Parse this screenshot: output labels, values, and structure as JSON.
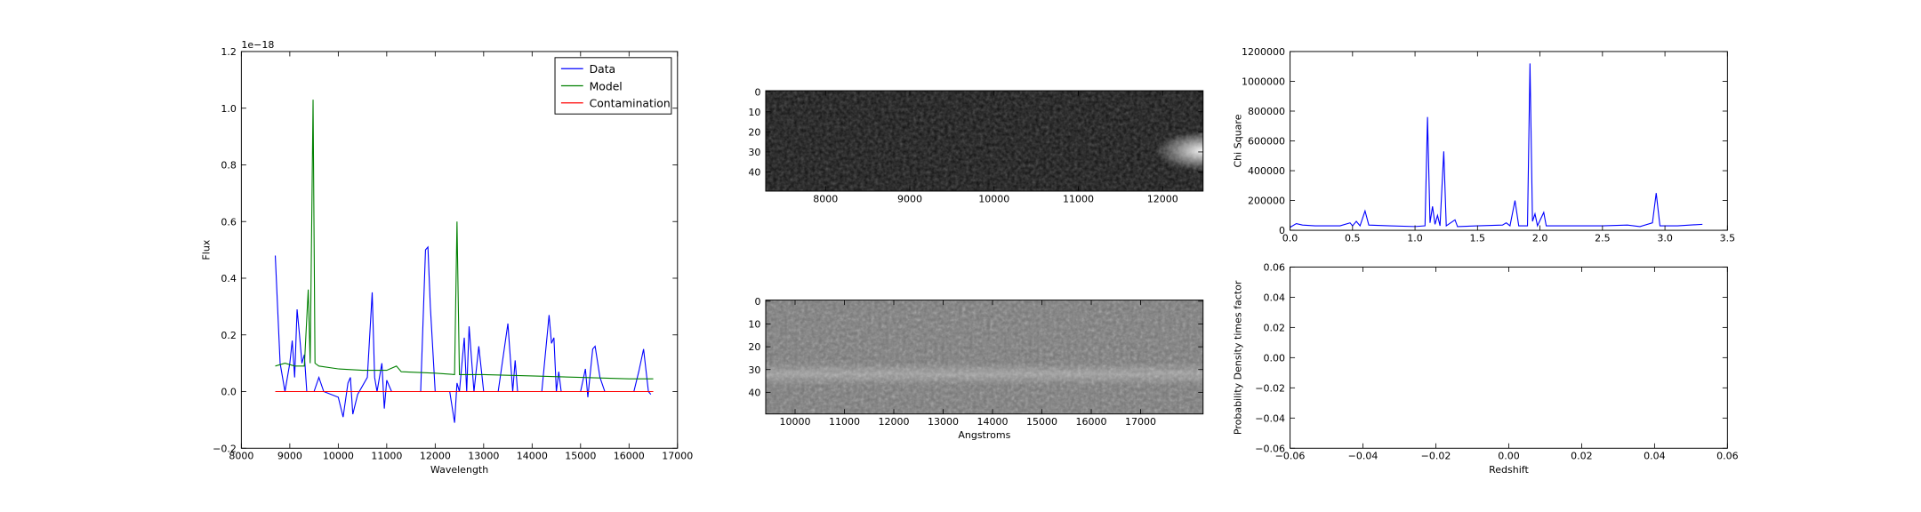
{
  "chart_data": [
    {
      "type": "line",
      "xlabel": "Wavelength",
      "ylabel": "Flux",
      "y_offset_label": "1e−18",
      "xlim": [
        8000,
        17000
      ],
      "ylim": [
        -0.2,
        1.2
      ],
      "xticks": [
        8000,
        9000,
        10000,
        11000,
        12000,
        13000,
        14000,
        15000,
        16000,
        17000
      ],
      "yticks": [
        {
          "value": -0.2,
          "label": "−0.2"
        },
        {
          "value": 0,
          "label": "0.0"
        },
        0.2,
        0.4,
        0.6,
        0.8,
        {
          "value": 1,
          "label": "1.0"
        },
        1.2
      ],
      "legend": "upper right",
      "series": [
        {
          "name": "Data",
          "color": "#0000ff",
          "x": [
            8700,
            8800,
            8900,
            9000,
            9050,
            9100,
            9150,
            9200,
            9250,
            9300,
            9350,
            9500,
            9600,
            9700,
            10000,
            10100,
            10200,
            10250,
            10300,
            10400,
            10600,
            10700,
            10750,
            10800,
            10900,
            10950,
            11000,
            11100,
            11700,
            11800,
            11850,
            11900,
            12000,
            12300,
            12400,
            12450,
            12500,
            12600,
            12650,
            12700,
            12800,
            12900,
            13000,
            13300,
            13500,
            13600,
            13650,
            13700,
            14200,
            14350,
            14400,
            14450,
            14500,
            14550,
            14600,
            15000,
            15100,
            15150,
            15250,
            15300,
            15400,
            15500,
            16100,
            16200,
            16300,
            16400,
            16450
          ],
          "values": [
            0.48,
            0.1,
            0.0,
            0.1,
            0.18,
            0.05,
            0.29,
            0.2,
            0.1,
            0.13,
            0.0,
            0.0,
            0.05,
            0.0,
            -0.02,
            -0.09,
            0.03,
            0.05,
            -0.08,
            -0.01,
            0.05,
            0.35,
            0.05,
            0.0,
            0.1,
            -0.06,
            0.04,
            0.0,
            0.0,
            0.5,
            0.51,
            0.3,
            0.0,
            0.0,
            -0.11,
            0.03,
            0.0,
            0.19,
            0.0,
            0.23,
            0.0,
            0.16,
            0.0,
            0.0,
            0.24,
            0.0,
            0.11,
            0.0,
            0.0,
            0.27,
            0.17,
            0.19,
            0.0,
            0.07,
            0.0,
            0.0,
            0.08,
            -0.02,
            0.15,
            0.16,
            0.05,
            0.0,
            0.0,
            0.07,
            0.15,
            0.0,
            -0.01
          ]
        },
        {
          "name": "Model",
          "color": "#008000",
          "x": [
            8700,
            8900,
            9100,
            9300,
            9380,
            9420,
            9480,
            9520,
            9600,
            10000,
            10500,
            11000,
            11200,
            11300,
            12000,
            12400,
            12450,
            12500,
            13000,
            14000,
            15000,
            16000,
            16500
          ],
          "values": [
            0.09,
            0.1,
            0.09,
            0.09,
            0.36,
            0.1,
            1.03,
            0.1,
            0.09,
            0.08,
            0.075,
            0.075,
            0.09,
            0.07,
            0.065,
            0.06,
            0.6,
            0.06,
            0.06,
            0.055,
            0.05,
            0.045,
            0.045
          ]
        },
        {
          "name": "Contamination",
          "color": "#ff0000",
          "x": [
            8700,
            16500
          ],
          "values": [
            0,
            0
          ]
        }
      ]
    },
    {
      "type": "image",
      "xlim": [
        7290,
        12480
      ],
      "ylim": [
        49.5,
        -0.5
      ],
      "xticks": [
        8000,
        9000,
        10000,
        11000,
        12000
      ],
      "yticks": [
        0,
        10,
        20,
        30,
        40
      ]
    },
    {
      "type": "image",
      "xlabel": "Angstroms",
      "xlim": [
        9405,
        18265
      ],
      "ylim": [
        49.5,
        -0.5
      ],
      "xticks": [
        10000,
        11000,
        12000,
        13000,
        14000,
        15000,
        16000,
        17000
      ],
      "yticks": [
        0,
        10,
        20,
        30,
        40
      ]
    },
    {
      "type": "line",
      "ylabel": "Chi Square",
      "xlim": [
        0,
        3.5
      ],
      "ylim": [
        0,
        1200000
      ],
      "xticks": [
        {
          "value": 0,
          "label": "0.0"
        },
        0.5,
        {
          "value": 1,
          "label": "1.0"
        },
        1.5,
        {
          "value": 2,
          "label": "2.0"
        },
        2.5,
        {
          "value": 3,
          "label": "3.0"
        },
        3.5
      ],
      "yticks": [
        0,
        200000,
        400000,
        600000,
        800000,
        1000000,
        1200000
      ],
      "series": [
        {
          "color": "#0000ff",
          "x": [
            0,
            0.05,
            0.1,
            0.2,
            0.4,
            0.48,
            0.5,
            0.53,
            0.56,
            0.6,
            0.63,
            0.8,
            1.0,
            1.08,
            1.1,
            1.12,
            1.14,
            1.16,
            1.18,
            1.2,
            1.23,
            1.25,
            1.32,
            1.34,
            1.5,
            1.7,
            1.73,
            1.76,
            1.8,
            1.83,
            1.9,
            1.92,
            1.94,
            1.96,
            1.98,
            2.03,
            2.05,
            2.5,
            2.7,
            2.8,
            2.9,
            2.93,
            2.96,
            3.1,
            3.3
          ],
          "values": [
            20000,
            45000,
            35000,
            30000,
            30000,
            50000,
            30000,
            60000,
            30000,
            130000,
            35000,
            30000,
            25000,
            30000,
            760000,
            50000,
            160000,
            40000,
            100000,
            30000,
            530000,
            30000,
            70000,
            25000,
            30000,
            35000,
            50000,
            30000,
            200000,
            30000,
            30000,
            1120000,
            60000,
            110000,
            30000,
            120000,
            30000,
            30000,
            35000,
            25000,
            50000,
            250000,
            30000,
            30000,
            40000
          ]
        }
      ]
    },
    {
      "type": "line",
      "xlabel": "Redshift",
      "ylabel": "Probability Density times factor",
      "xlim": [
        -0.06,
        0.06
      ],
      "ylim": [
        -0.06,
        0.06
      ],
      "xticks": [
        {
          "value": -0.06,
          "label": "−0.06"
        },
        {
          "value": -0.04,
          "label": "−0.04"
        },
        {
          "value": -0.02,
          "label": "−0.02"
        },
        {
          "value": 0,
          "label": "0.00"
        },
        {
          "value": 0.02,
          "label": "0.02"
        },
        {
          "value": 0.04,
          "label": "0.04"
        },
        {
          "value": 0.06,
          "label": "0.06"
        }
      ],
      "yticks": [
        {
          "value": -0.06,
          "label": "−0.06"
        },
        {
          "value": -0.04,
          "label": "−0.04"
        },
        {
          "value": -0.02,
          "label": "−0.02"
        },
        {
          "value": 0,
          "label": "0.00"
        },
        {
          "value": 0.02,
          "label": "0.02"
        },
        {
          "value": 0.04,
          "label": "0.04"
        },
        {
          "value": 0.06,
          "label": "0.06"
        }
      ],
      "series": []
    }
  ]
}
